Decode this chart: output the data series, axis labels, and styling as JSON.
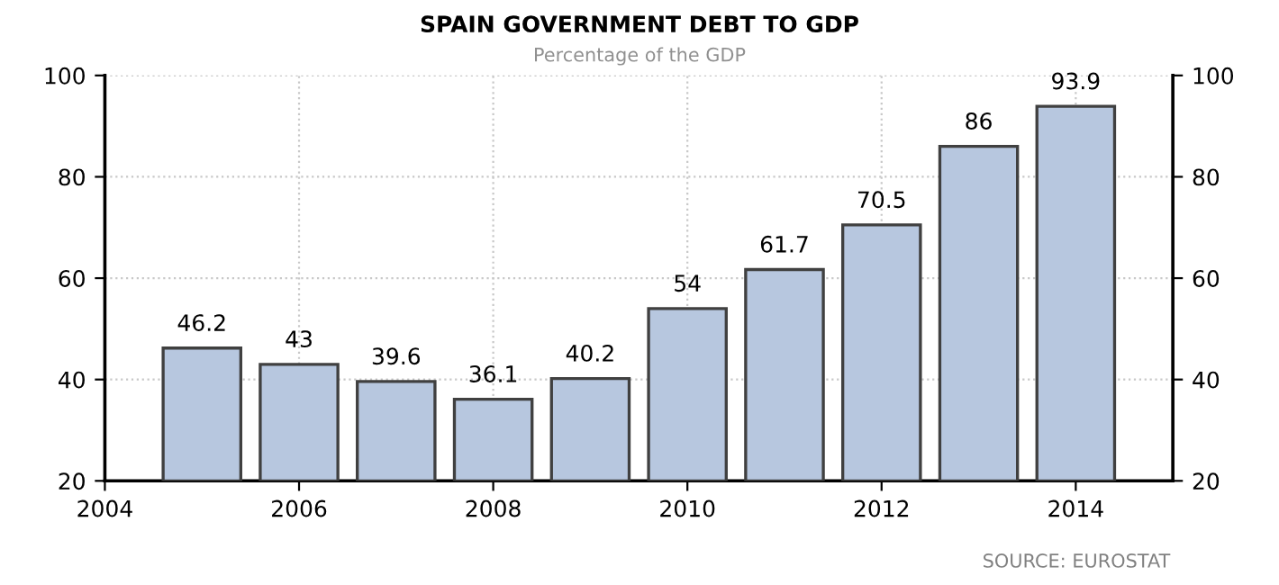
{
  "chart_data": {
    "type": "bar",
    "title": "SPAIN GOVERNMENT DEBT TO GDP",
    "subtitle": "Percentage of the GDP",
    "x": [
      2005,
      2006,
      2007,
      2008,
      2009,
      2010,
      2011,
      2012,
      2013,
      2014
    ],
    "series": [
      {
        "color": "#b7c7df",
        "values": [
          46.2,
          43,
          39.6,
          36.1,
          40.2,
          54,
          61.7,
          70.5,
          86,
          93.9
        ]
      }
    ],
    "data_labels": true,
    "xlim": [
      2004,
      2015
    ],
    "xticks": [
      2004,
      2006,
      2008,
      2010,
      2012,
      2014
    ],
    "ylim": [
      20,
      100
    ],
    "yticks": [
      20,
      40,
      60,
      80,
      100
    ],
    "y2lim": [
      20,
      100
    ],
    "y2ticks": [
      20,
      40,
      60,
      80,
      100
    ],
    "grid": true,
    "legend": false,
    "annotations": [
      "SOURCE: EUROSTAT"
    ]
  }
}
